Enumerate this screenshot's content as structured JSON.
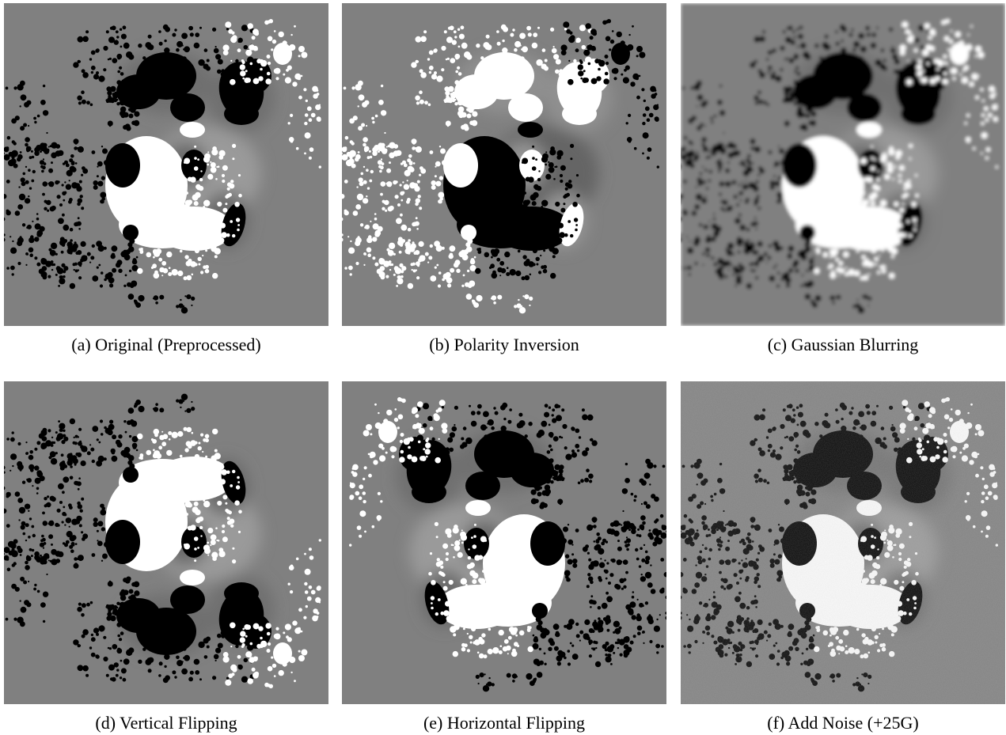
{
  "figure": {
    "panels": [
      {
        "id": "a",
        "caption": "(a) Original (Preprocessed)"
      },
      {
        "id": "b",
        "caption": "(b) Polarity Inversion"
      },
      {
        "id": "c",
        "caption": "(c) Gaussian Blurring"
      },
      {
        "id": "d",
        "caption": "(d) Vertical Flipping"
      },
      {
        "id": "e",
        "caption": "(e) Horizontal Flipping"
      },
      {
        "id": "f",
        "caption": "(f) Add Noise (+25G)"
      }
    ],
    "colors": {
      "background_field": "#808080",
      "positive_polarity": "#ffffff",
      "negative_polarity": "#000000"
    }
  }
}
